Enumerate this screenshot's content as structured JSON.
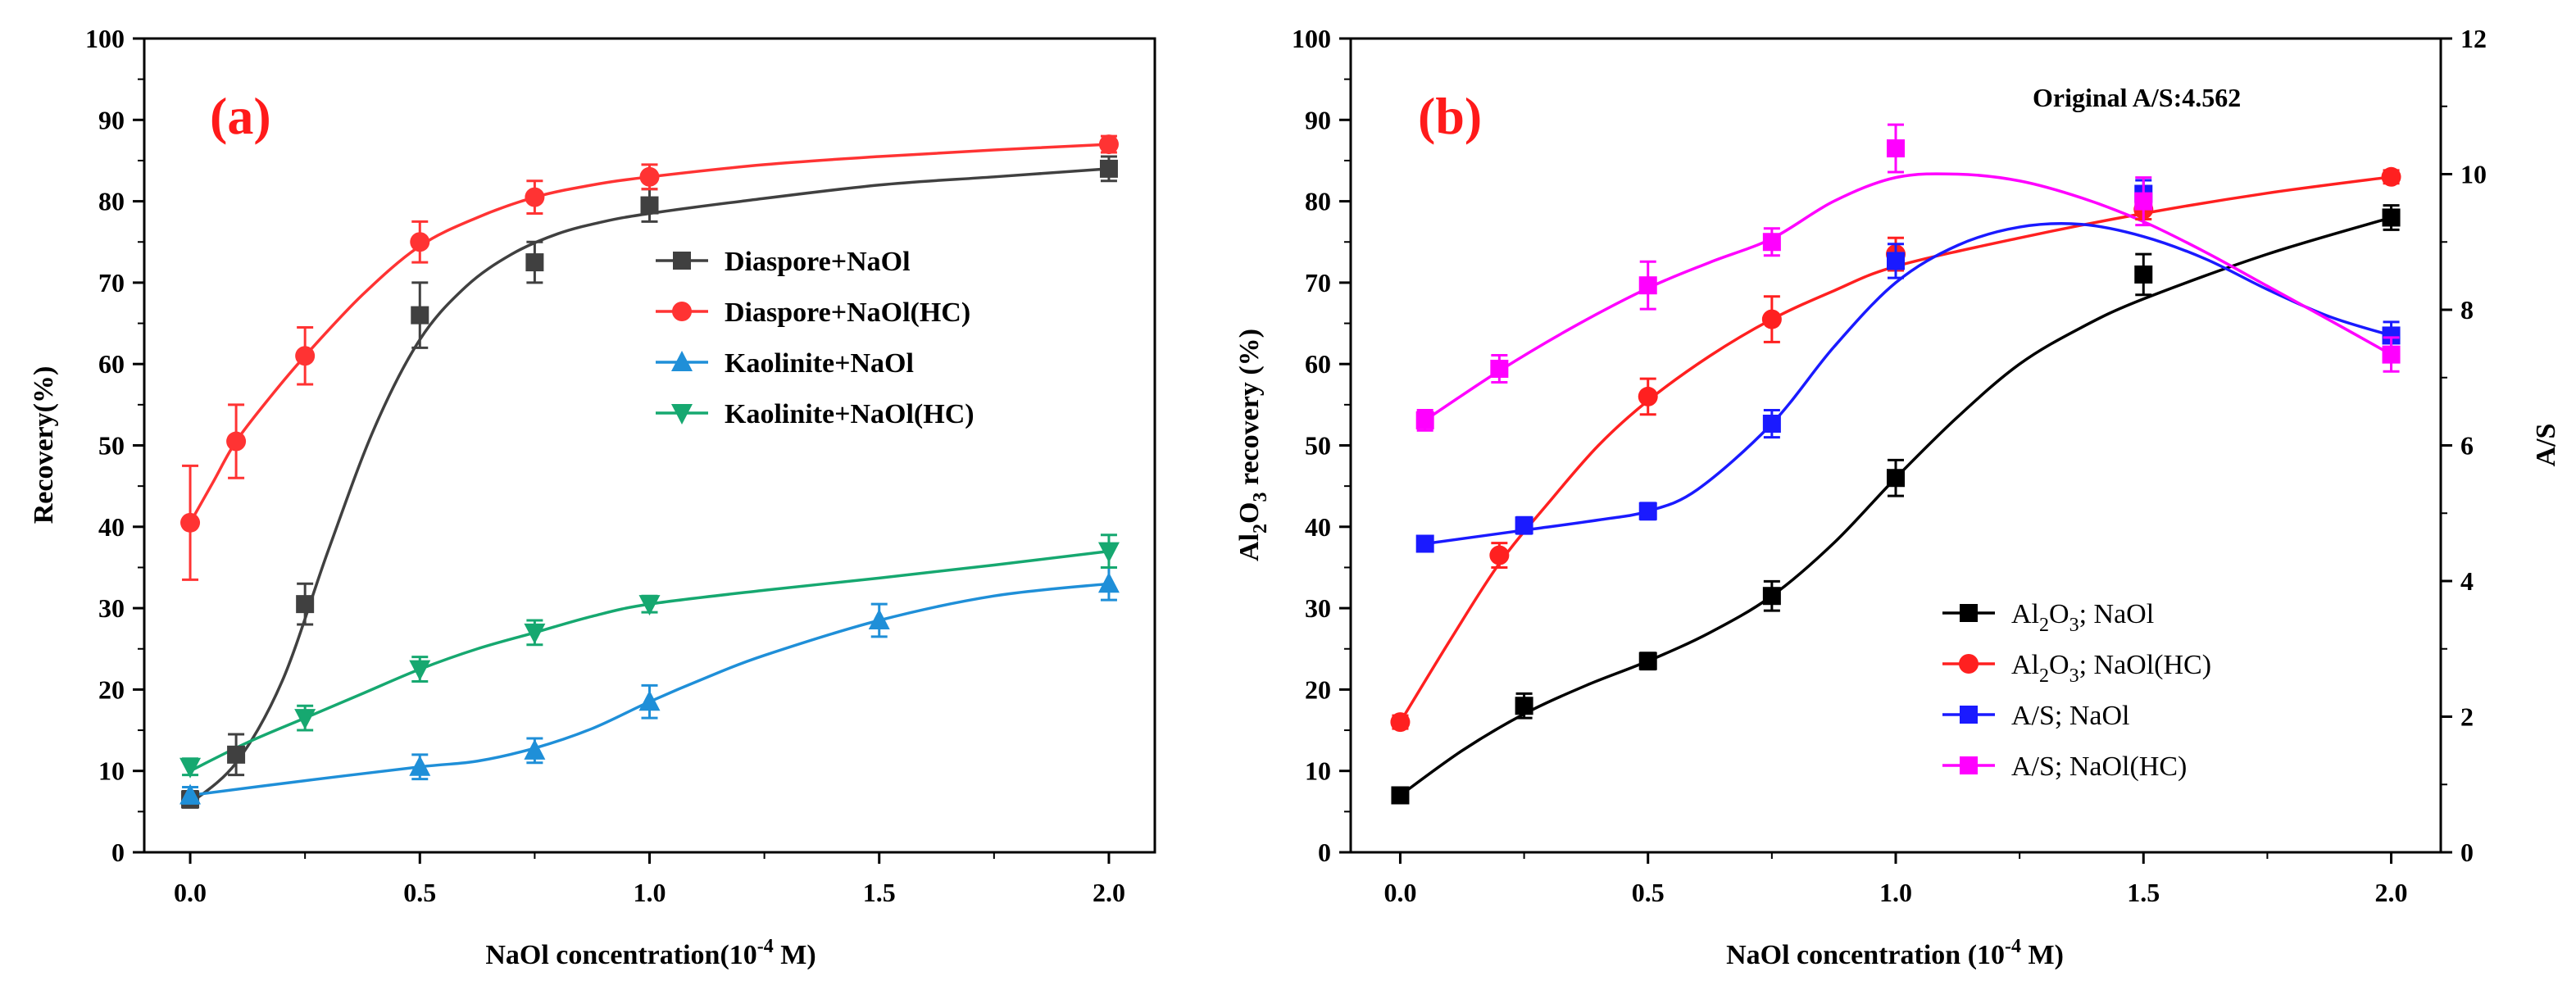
{
  "chart_data": [
    {
      "type": "line",
      "panel_label": "(a)",
      "xlabel_prefix": "NaOl concentration(10",
      "xlabel_exp": "-4",
      "xlabel_suffix": " M)",
      "ylabel": "Recovery(%)",
      "xlim": [
        -0.1,
        2.1
      ],
      "ylim": [
        0,
        100
      ],
      "x_ticks": [
        "0.0",
        "0.5",
        "1.0",
        "1.5",
        "2.0"
      ],
      "x_tick_values": [
        0,
        0.5,
        1.0,
        1.5,
        2.0
      ],
      "y_ticks": [
        "0",
        "10",
        "20",
        "30",
        "40",
        "50",
        "60",
        "70",
        "80",
        "90",
        "100"
      ],
      "y_tick_values": [
        0,
        10,
        20,
        30,
        40,
        50,
        60,
        70,
        80,
        90,
        100
      ],
      "legend_position": "center-right",
      "series": [
        {
          "name": "Diaspore+NaOl",
          "color": "#404040",
          "marker": "square",
          "x": [
            0,
            0.1,
            0.25,
            0.5,
            0.75,
            1.0,
            2.0
          ],
          "y": [
            6.5,
            12,
            30.5,
            66,
            72.5,
            79.5,
            84
          ],
          "err": [
            1,
            2.5,
            2.5,
            4,
            2.5,
            2,
            1.5
          ],
          "curve": [
            [
              0,
              6
            ],
            [
              0.1,
              11
            ],
            [
              0.2,
              21
            ],
            [
              0.3,
              37
            ],
            [
              0.4,
              52
            ],
            [
              0.5,
              63
            ],
            [
              0.6,
              69.5
            ],
            [
              0.7,
              73.5
            ],
            [
              0.8,
              76
            ],
            [
              0.9,
              77.5
            ],
            [
              1.0,
              78.5
            ],
            [
              1.2,
              80
            ],
            [
              1.5,
              82
            ],
            [
              1.75,
              83
            ],
            [
              2.0,
              84
            ]
          ]
        },
        {
          "name": "Diaspore+NaOl(HC)",
          "color": "#ff3333",
          "marker": "circle",
          "x": [
            0,
            0.1,
            0.25,
            0.5,
            0.75,
            1.0,
            2.0
          ],
          "y": [
            40.5,
            50.5,
            61,
            75,
            80.5,
            83,
            87
          ],
          "err": [
            7,
            4.5,
            3.5,
            2.5,
            2,
            1.5,
            1
          ],
          "curve": [
            [
              0,
              40.5
            ],
            [
              0.05,
              45.5
            ],
            [
              0.1,
              50.5
            ],
            [
              0.175,
              56
            ],
            [
              0.25,
              61
            ],
            [
              0.375,
              68.5
            ],
            [
              0.5,
              74.5
            ],
            [
              0.625,
              78
            ],
            [
              0.75,
              80.5
            ],
            [
              0.875,
              82
            ],
            [
              1.0,
              83
            ],
            [
              1.25,
              84.5
            ],
            [
              1.5,
              85.5
            ],
            [
              1.75,
              86.3
            ],
            [
              2.0,
              87
            ]
          ]
        },
        {
          "name": "Kaolinite+NaOl",
          "color": "#1f8fd8",
          "marker": "triangle-up",
          "x": [
            0,
            0.5,
            0.75,
            1.0,
            1.5,
            2.0
          ],
          "y": [
            7,
            10.5,
            12.5,
            18.5,
            28.5,
            33
          ],
          "err": [
            1,
            1.5,
            1.5,
            2,
            2,
            2
          ],
          "curve": [
            [
              0,
              7
            ],
            [
              0.25,
              8.8
            ],
            [
              0.5,
              10.5
            ],
            [
              0.625,
              11.2
            ],
            [
              0.75,
              12.8
            ],
            [
              0.875,
              15.2
            ],
            [
              1.0,
              18.5
            ],
            [
              1.125,
              21.5
            ],
            [
              1.25,
              24.2
            ],
            [
              1.5,
              28.5
            ],
            [
              1.75,
              31.5
            ],
            [
              2.0,
              33
            ]
          ]
        },
        {
          "name": "Kaolinite+NaOl(HC)",
          "color": "#16a870",
          "marker": "triangle-down",
          "x": [
            0,
            0.25,
            0.5,
            0.75,
            1.0,
            2.0
          ],
          "y": [
            10.5,
            16.5,
            22.5,
            27,
            30.5,
            37
          ],
          "err": [
            1,
            1.5,
            1.5,
            1.5,
            1,
            2
          ],
          "curve": [
            [
              0,
              10
            ],
            [
              0.125,
              13.5
            ],
            [
              0.25,
              16.5
            ],
            [
              0.375,
              19.5
            ],
            [
              0.5,
              22.5
            ],
            [
              0.625,
              25
            ],
            [
              0.75,
              27
            ],
            [
              0.875,
              29
            ],
            [
              1.0,
              30.5
            ],
            [
              1.25,
              32.2
            ],
            [
              1.5,
              33.7
            ],
            [
              1.75,
              35.3
            ],
            [
              2.0,
              37
            ]
          ]
        }
      ]
    },
    {
      "type": "line",
      "panel_label": "(b)",
      "annotation": "Original A/S:4.562",
      "xlabel_prefix": "NaOl concentration (10",
      "xlabel_exp": "-4",
      "xlabel_suffix": " M)",
      "ylabel_prefix": "Al",
      "ylabel_sub": "2",
      "ylabel_mid": "O",
      "ylabel_sub2": "3",
      "ylabel_suffix": " recovery (%)",
      "y2label": "A/S",
      "xlim": [
        -0.1,
        2.1
      ],
      "ylim": [
        0,
        100
      ],
      "y2lim": [
        0,
        12
      ],
      "x_ticks": [
        "0.0",
        "0.5",
        "1.0",
        "1.5",
        "2.0"
      ],
      "x_tick_values": [
        0,
        0.5,
        1.0,
        1.5,
        2.0
      ],
      "y_ticks": [
        "0",
        "10",
        "20",
        "30",
        "40",
        "50",
        "60",
        "70",
        "80",
        "90",
        "100"
      ],
      "y_tick_values": [
        0,
        10,
        20,
        30,
        40,
        50,
        60,
        70,
        80,
        90,
        100
      ],
      "y2_ticks": [
        "0",
        "2",
        "4",
        "6",
        "8",
        "10",
        "12"
      ],
      "y2_tick_values": [
        0,
        2,
        4,
        6,
        8,
        10,
        12
      ],
      "legend_position": "bottom-right",
      "series": [
        {
          "name_prefix": "Al",
          "name_sub": "2",
          "name_mid": "O",
          "name_sub2": "3",
          "name_suffix": "; NaOl",
          "color": "#000000",
          "marker": "square",
          "axis": "left",
          "x": [
            0,
            0.25,
            0.5,
            0.75,
            1.0,
            1.5,
            2.0
          ],
          "y": [
            7,
            18,
            23.5,
            31.5,
            46,
            71,
            78
          ],
          "err": [
            0.7,
            1.5,
            1,
            1.8,
            2.2,
            2.5,
            1.5
          ],
          "curve": [
            [
              0,
              7
            ],
            [
              0.125,
              12.5
            ],
            [
              0.25,
              17
            ],
            [
              0.375,
              20.5
            ],
            [
              0.5,
              23.5
            ],
            [
              0.625,
              27
            ],
            [
              0.75,
              31.5
            ],
            [
              0.875,
              38
            ],
            [
              1.0,
              46
            ],
            [
              1.125,
              53.5
            ],
            [
              1.25,
              60
            ],
            [
              1.375,
              64.5
            ],
            [
              1.5,
              68
            ],
            [
              1.75,
              73.5
            ],
            [
              2.0,
              78
            ]
          ]
        },
        {
          "name_prefix": "Al",
          "name_sub": "2",
          "name_mid": "O",
          "name_sub2": "3",
          "name_suffix": "; NaOl(HC)",
          "color": "#ff2020",
          "marker": "circle",
          "axis": "left",
          "x": [
            0,
            0.2,
            0.5,
            0.75,
            1.0,
            1.5,
            2.0
          ],
          "y": [
            16,
            36.5,
            56,
            65.5,
            73.5,
            79,
            83
          ],
          "err": [
            0.8,
            1.5,
            2.2,
            2.8,
            2,
            1.2,
            0.8
          ],
          "curve": [
            [
              0,
              16
            ],
            [
              0.1,
              26
            ],
            [
              0.2,
              35.5
            ],
            [
              0.3,
              43
            ],
            [
              0.4,
              50
            ],
            [
              0.5,
              55.5
            ],
            [
              0.625,
              61
            ],
            [
              0.75,
              65.5
            ],
            [
              0.875,
              69
            ],
            [
              1.0,
              72
            ],
            [
              1.25,
              75.5
            ],
            [
              1.5,
              78.5
            ],
            [
              1.75,
              81
            ],
            [
              2.0,
              83
            ]
          ]
        },
        {
          "name": "A/S; NaOl",
          "color": "#1a1aff",
          "marker": "square",
          "axis": "right",
          "x": [
            0.05,
            0.25,
            0.5,
            0.75,
            1.0,
            1.5,
            2.0
          ],
          "y": [
            4.55,
            4.82,
            5.03,
            6.32,
            8.72,
            9.71,
            7.62
          ],
          "err": [
            0.1,
            0.12,
            0.12,
            0.2,
            0.25,
            0.2,
            0.2
          ],
          "curve": [
            [
              0.05,
              4.55
            ],
            [
              0.25,
              4.75
            ],
            [
              0.4,
              4.9
            ],
            [
              0.5,
              5.03
            ],
            [
              0.6,
              5.35
            ],
            [
              0.75,
              6.32
            ],
            [
              0.875,
              7.45
            ],
            [
              1.0,
              8.4
            ],
            [
              1.125,
              8.95
            ],
            [
              1.25,
              9.22
            ],
            [
              1.375,
              9.26
            ],
            [
              1.5,
              9.08
            ],
            [
              1.625,
              8.75
            ],
            [
              1.75,
              8.3
            ],
            [
              1.875,
              7.9
            ],
            [
              2.0,
              7.62
            ]
          ]
        },
        {
          "name": "A/S; NaOl(HC)",
          "color": "#ff00ff",
          "marker": "square",
          "axis": "right",
          "x": [
            0.05,
            0.2,
            0.5,
            0.75,
            1.0,
            1.5,
            2.0
          ],
          "y": [
            6.37,
            7.13,
            8.36,
            9.0,
            10.38,
            9.6,
            7.34
          ],
          "err": [
            0.15,
            0.2,
            0.35,
            0.2,
            0.35,
            0.35,
            0.25
          ],
          "curve": [
            [
              0.05,
              6.37
            ],
            [
              0.2,
              7.1
            ],
            [
              0.35,
              7.75
            ],
            [
              0.5,
              8.32
            ],
            [
              0.625,
              8.7
            ],
            [
              0.75,
              9.05
            ],
            [
              0.875,
              9.6
            ],
            [
              1.0,
              9.95
            ],
            [
              1.125,
              10.0
            ],
            [
              1.25,
              9.9
            ],
            [
              1.375,
              9.65
            ],
            [
              1.5,
              9.3
            ],
            [
              1.625,
              8.85
            ],
            [
              1.75,
              8.35
            ],
            [
              1.875,
              7.85
            ],
            [
              2.0,
              7.34
            ]
          ]
        }
      ]
    }
  ]
}
